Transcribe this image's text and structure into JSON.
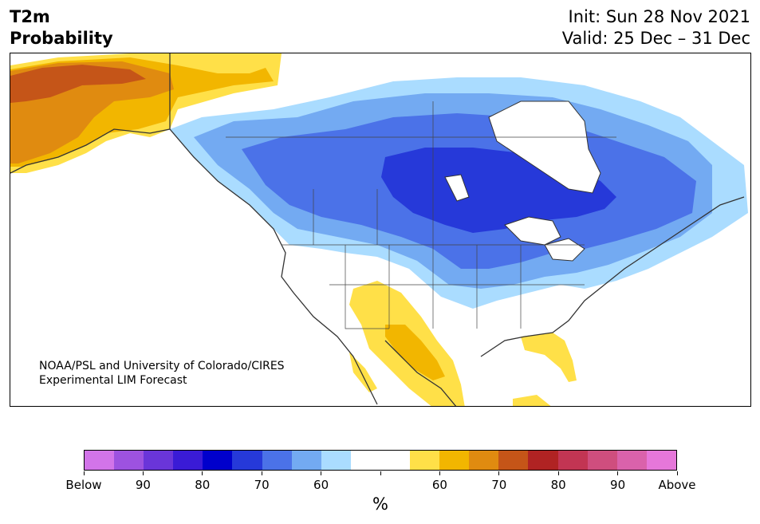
{
  "header": {
    "title_line1": "T2m",
    "title_line2": "Probability",
    "init": "Init: Sun 28 Nov 2021",
    "valid": "Valid: 25 Dec – 31 Dec"
  },
  "credit": {
    "line1": "NOAA/PSL and University of Colorado/CIRES",
    "line2": "Experimental LIM Forecast"
  },
  "colorbar": {
    "colors": [
      "#d274e9",
      "#9d52e0",
      "#6a35d9",
      "#3a1bd6",
      "#0000cc",
      "#2639d9",
      "#4b72e8",
      "#73aaf2",
      "#aadcff",
      "#ffffff",
      "#ffffff",
      "#ffe048",
      "#f2b600",
      "#e08b10",
      "#c55518",
      "#b02323",
      "#c23553",
      "#cf4e7e",
      "#da62ab",
      "#e677da"
    ],
    "labels": [
      "Below",
      "90",
      "80",
      "70",
      "60",
      "",
      "60",
      "70",
      "80",
      "90",
      "Above"
    ],
    "unit": "%"
  },
  "map": {
    "land_color": "#ffffff",
    "coast_color": "#333333",
    "region_names": [
      "alaska-warm",
      "canada-cold-core",
      "mexico-warm",
      "florida-warm"
    ]
  }
}
